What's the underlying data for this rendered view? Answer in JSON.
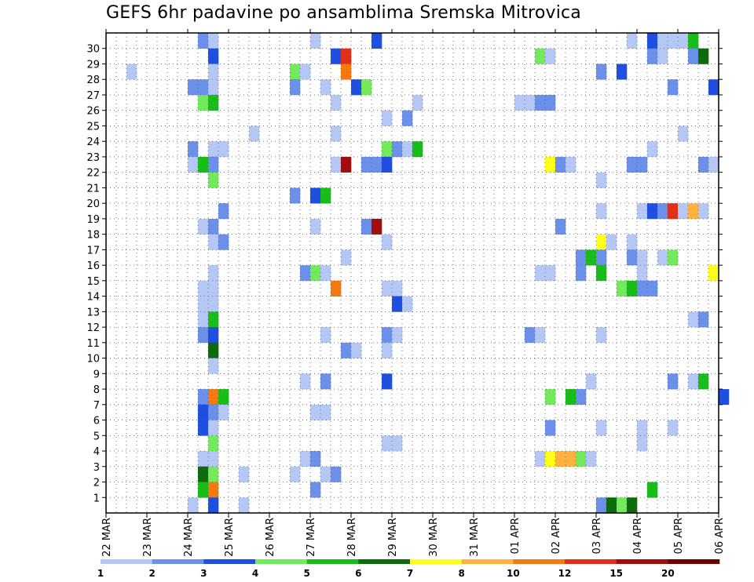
{
  "chart_data": {
    "type": "heatmap",
    "title": "GEFS 6hr padavine po ansamblima Sremska Mitrovica",
    "x_tick_labels": [
      "22 MAR",
      "23 MAR",
      "24 MAR",
      "25 MAR",
      "26 MAR",
      "27 MAR",
      "28 MAR",
      "29 MAR",
      "30 MAR",
      "31 MAR",
      "01 APR",
      "02 APR",
      "03 APR",
      "04 APR",
      "05 APR",
      "06 APR"
    ],
    "y_tick_labels": [
      1,
      2,
      3,
      4,
      5,
      6,
      7,
      8,
      9,
      10,
      11,
      12,
      13,
      14,
      15,
      16,
      17,
      18,
      19,
      20,
      21,
      22,
      23,
      24,
      25,
      26,
      27,
      28,
      29,
      30
    ],
    "members": 31,
    "steps_per_day": 4,
    "legend_labels": [
      "1",
      "2",
      "3",
      "4",
      "5",
      "6",
      "7",
      "8",
      "10",
      "12",
      "15",
      "20"
    ],
    "colors": [
      "#b4c7f5",
      "#6a90ea",
      "#1f4fe0",
      "#72ea5c",
      "#19bd19",
      "#0d6b0d",
      "#ffff1a",
      "#ffb240",
      "#f47a10",
      "#e0301a",
      "#a00d0d",
      "#6e0000"
    ],
    "grid": "dotted",
    "cells": [
      {
        "member": 30,
        "step": 9,
        "level": 1
      },
      {
        "member": 30,
        "step": 10,
        "level": 0
      },
      {
        "member": 30,
        "step": 20,
        "level": 0
      },
      {
        "member": 30,
        "step": 26,
        "level": 2
      },
      {
        "member": 30,
        "step": 51,
        "level": 0
      },
      {
        "member": 30,
        "step": 53,
        "level": 2
      },
      {
        "member": 30,
        "step": 54,
        "level": 0
      },
      {
        "member": 30,
        "step": 55,
        "level": 0
      },
      {
        "member": 30,
        "step": 56,
        "level": 0
      },
      {
        "member": 30,
        "step": 57,
        "level": 4
      },
      {
        "member": 29,
        "step": 10,
        "level": 2
      },
      {
        "member": 29,
        "step": 22,
        "level": 2
      },
      {
        "member": 29,
        "step": 23,
        "level": 9
      },
      {
        "member": 29,
        "step": 42,
        "level": 3
      },
      {
        "member": 29,
        "step": 43,
        "level": 0
      },
      {
        "member": 29,
        "step": 53,
        "level": 1
      },
      {
        "member": 29,
        "step": 54,
        "level": 0
      },
      {
        "member": 29,
        "step": 57,
        "level": 1
      },
      {
        "member": 29,
        "step": 58,
        "level": 5
      },
      {
        "member": 28,
        "step": 2,
        "level": 0
      },
      {
        "member": 28,
        "step": 10,
        "level": 0
      },
      {
        "member": 28,
        "step": 18,
        "level": 3
      },
      {
        "member": 28,
        "step": 19,
        "level": 0
      },
      {
        "member": 28,
        "step": 23,
        "level": 8
      },
      {
        "member": 28,
        "step": 48,
        "level": 1
      },
      {
        "member": 28,
        "step": 50,
        "level": 2
      },
      {
        "member": 27,
        "step": 8,
        "level": 1
      },
      {
        "member": 27,
        "step": 9,
        "level": 1
      },
      {
        "member": 27,
        "step": 10,
        "level": 0
      },
      {
        "member": 27,
        "step": 18,
        "level": 1
      },
      {
        "member": 27,
        "step": 21,
        "level": 0
      },
      {
        "member": 27,
        "step": 24,
        "level": 2
      },
      {
        "member": 27,
        "step": 25,
        "level": 3
      },
      {
        "member": 27,
        "step": 55,
        "level": 1
      },
      {
        "member": 27,
        "step": 59,
        "level": 2
      },
      {
        "member": 26,
        "step": 9,
        "level": 3
      },
      {
        "member": 26,
        "step": 10,
        "level": 4
      },
      {
        "member": 26,
        "step": 22,
        "level": 0
      },
      {
        "member": 26,
        "step": 30,
        "level": 0
      },
      {
        "member": 26,
        "step": 40,
        "level": 0
      },
      {
        "member": 26,
        "step": 41,
        "level": 0
      },
      {
        "member": 26,
        "step": 42,
        "level": 1
      },
      {
        "member": 26,
        "step": 43,
        "level": 1
      },
      {
        "member": 25,
        "step": 27,
        "level": 0
      },
      {
        "member": 25,
        "step": 29,
        "level": 1
      },
      {
        "member": 24,
        "step": 14,
        "level": 0
      },
      {
        "member": 24,
        "step": 22,
        "level": 0
      },
      {
        "member": 24,
        "step": 56,
        "level": 0
      },
      {
        "member": 23,
        "step": 8,
        "level": 1
      },
      {
        "member": 23,
        "step": 10,
        "level": 0
      },
      {
        "member": 23,
        "step": 11,
        "level": 0
      },
      {
        "member": 23,
        "step": 27,
        "level": 3
      },
      {
        "member": 23,
        "step": 28,
        "level": 1
      },
      {
        "member": 23,
        "step": 29,
        "level": 0
      },
      {
        "member": 23,
        "step": 30,
        "level": 4
      },
      {
        "member": 23,
        "step": 53,
        "level": 0
      },
      {
        "member": 22,
        "step": 8,
        "level": 0
      },
      {
        "member": 22,
        "step": 9,
        "level": 4
      },
      {
        "member": 22,
        "step": 10,
        "level": 1
      },
      {
        "member": 22,
        "step": 22,
        "level": 0
      },
      {
        "member": 22,
        "step": 23,
        "level": 10
      },
      {
        "member": 22,
        "step": 25,
        "level": 1
      },
      {
        "member": 22,
        "step": 26,
        "level": 1
      },
      {
        "member": 22,
        "step": 27,
        "level": 2
      },
      {
        "member": 22,
        "step": 43,
        "level": 6
      },
      {
        "member": 22,
        "step": 44,
        "level": 1
      },
      {
        "member": 22,
        "step": 45,
        "level": 0
      },
      {
        "member": 22,
        "step": 51,
        "level": 1
      },
      {
        "member": 22,
        "step": 52,
        "level": 1
      },
      {
        "member": 22,
        "step": 58,
        "level": 1
      },
      {
        "member": 22,
        "step": 59,
        "level": 0
      },
      {
        "member": 21,
        "step": 10,
        "level": 3
      },
      {
        "member": 21,
        "step": 48,
        "level": 0
      },
      {
        "member": 20,
        "step": 18,
        "level": 1
      },
      {
        "member": 20,
        "step": 20,
        "level": 2
      },
      {
        "member": 20,
        "step": 21,
        "level": 4
      },
      {
        "member": 19,
        "step": 11,
        "level": 1
      },
      {
        "member": 19,
        "step": 48,
        "level": 0
      },
      {
        "member": 19,
        "step": 52,
        "level": 0
      },
      {
        "member": 19,
        "step": 53,
        "level": 2
      },
      {
        "member": 19,
        "step": 54,
        "level": 1
      },
      {
        "member": 19,
        "step": 55,
        "level": 9
      },
      {
        "member": 19,
        "step": 56,
        "level": 0
      },
      {
        "member": 19,
        "step": 57,
        "level": 7
      },
      {
        "member": 19,
        "step": 58,
        "level": 0
      },
      {
        "member": 18,
        "step": 9,
        "level": 0
      },
      {
        "member": 18,
        "step": 10,
        "level": 1
      },
      {
        "member": 18,
        "step": 20,
        "level": 0
      },
      {
        "member": 18,
        "step": 25,
        "level": 1
      },
      {
        "member": 18,
        "step": 26,
        "level": 10
      },
      {
        "member": 18,
        "step": 44,
        "level": 1
      },
      {
        "member": 17,
        "step": 10,
        "level": 0
      },
      {
        "member": 17,
        "step": 11,
        "level": 1
      },
      {
        "member": 17,
        "step": 27,
        "level": 0
      },
      {
        "member": 17,
        "step": 48,
        "level": 6
      },
      {
        "member": 17,
        "step": 49,
        "level": 0
      },
      {
        "member": 17,
        "step": 51,
        "level": 0
      },
      {
        "member": 16,
        "step": 23,
        "level": 0
      },
      {
        "member": 16,
        "step": 46,
        "level": 1
      },
      {
        "member": 16,
        "step": 47,
        "level": 4
      },
      {
        "member": 16,
        "step": 48,
        "level": 1
      },
      {
        "member": 16,
        "step": 51,
        "level": 1
      },
      {
        "member": 16,
        "step": 52,
        "level": 0
      },
      {
        "member": 16,
        "step": 54,
        "level": 0
      },
      {
        "member": 16,
        "step": 55,
        "level": 3
      },
      {
        "member": 15,
        "step": 10,
        "level": 0
      },
      {
        "member": 15,
        "step": 19,
        "level": 1
      },
      {
        "member": 15,
        "step": 20,
        "level": 3
      },
      {
        "member": 15,
        "step": 21,
        "level": 0
      },
      {
        "member": 15,
        "step": 42,
        "level": 0
      },
      {
        "member": 15,
        "step": 43,
        "level": 0
      },
      {
        "member": 15,
        "step": 46,
        "level": 1
      },
      {
        "member": 15,
        "step": 48,
        "level": 4
      },
      {
        "member": 15,
        "step": 52,
        "level": 0
      },
      {
        "member": 15,
        "step": 59,
        "level": 6
      },
      {
        "member": 14,
        "step": 9,
        "level": 0
      },
      {
        "member": 14,
        "step": 10,
        "level": 0
      },
      {
        "member": 14,
        "step": 22,
        "level": 8
      },
      {
        "member": 14,
        "step": 27,
        "level": 0
      },
      {
        "member": 14,
        "step": 28,
        "level": 0
      },
      {
        "member": 14,
        "step": 50,
        "level": 3
      },
      {
        "member": 14,
        "step": 51,
        "level": 4
      },
      {
        "member": 14,
        "step": 52,
        "level": 1
      },
      {
        "member": 14,
        "step": 53,
        "level": 1
      },
      {
        "member": 13,
        "step": 9,
        "level": 0
      },
      {
        "member": 13,
        "step": 10,
        "level": 0
      },
      {
        "member": 13,
        "step": 28,
        "level": 2
      },
      {
        "member": 13,
        "step": 29,
        "level": 0
      },
      {
        "member": 12,
        "step": 9,
        "level": 0
      },
      {
        "member": 12,
        "step": 10,
        "level": 4
      },
      {
        "member": 12,
        "step": 57,
        "level": 0
      },
      {
        "member": 12,
        "step": 58,
        "level": 1
      },
      {
        "member": 11,
        "step": 9,
        "level": 1
      },
      {
        "member": 11,
        "step": 10,
        "level": 2
      },
      {
        "member": 11,
        "step": 21,
        "level": 0
      },
      {
        "member": 11,
        "step": 27,
        "level": 1
      },
      {
        "member": 11,
        "step": 28,
        "level": 0
      },
      {
        "member": 11,
        "step": 41,
        "level": 1
      },
      {
        "member": 11,
        "step": 42,
        "level": 0
      },
      {
        "member": 11,
        "step": 48,
        "level": 0
      },
      {
        "member": 10,
        "step": 10,
        "level": 5
      },
      {
        "member": 10,
        "step": 23,
        "level": 1
      },
      {
        "member": 10,
        "step": 24,
        "level": 0
      },
      {
        "member": 10,
        "step": 27,
        "level": 0
      },
      {
        "member": 9,
        "step": 10,
        "level": 0
      },
      {
        "member": 8,
        "step": 19,
        "level": 0
      },
      {
        "member": 8,
        "step": 21,
        "level": 1
      },
      {
        "member": 8,
        "step": 27,
        "level": 2
      },
      {
        "member": 8,
        "step": 47,
        "level": 0
      },
      {
        "member": 8,
        "step": 55,
        "level": 1
      },
      {
        "member": 8,
        "step": 57,
        "level": 0
      },
      {
        "member": 8,
        "step": 58,
        "level": 4
      },
      {
        "member": 7,
        "step": 9,
        "level": 1
      },
      {
        "member": 7,
        "step": 10,
        "level": 8
      },
      {
        "member": 7,
        "step": 11,
        "level": 4
      },
      {
        "member": 7,
        "step": 43,
        "level": 3
      },
      {
        "member": 7,
        "step": 45,
        "level": 4
      },
      {
        "member": 7,
        "step": 46,
        "level": 1
      },
      {
        "member": 7,
        "step": 60,
        "level": 2
      },
      {
        "member": 6,
        "step": 9,
        "level": 2
      },
      {
        "member": 6,
        "step": 10,
        "level": 1
      },
      {
        "member": 6,
        "step": 11,
        "level": 0
      },
      {
        "member": 6,
        "step": 20,
        "level": 0
      },
      {
        "member": 6,
        "step": 21,
        "level": 0
      },
      {
        "member": 5,
        "step": 9,
        "level": 2
      },
      {
        "member": 5,
        "step": 10,
        "level": 0
      },
      {
        "member": 5,
        "step": 43,
        "level": 1
      },
      {
        "member": 5,
        "step": 48,
        "level": 0
      },
      {
        "member": 5,
        "step": 52,
        "level": 0
      },
      {
        "member": 5,
        "step": 55,
        "level": 0
      },
      {
        "member": 4,
        "step": 10,
        "level": 3
      },
      {
        "member": 4,
        "step": 27,
        "level": 0
      },
      {
        "member": 4,
        "step": 28,
        "level": 0
      },
      {
        "member": 4,
        "step": 52,
        "level": 0
      },
      {
        "member": 3,
        "step": 9,
        "level": 0
      },
      {
        "member": 3,
        "step": 10,
        "level": 0
      },
      {
        "member": 3,
        "step": 19,
        "level": 0
      },
      {
        "member": 3,
        "step": 20,
        "level": 1
      },
      {
        "member": 3,
        "step": 42,
        "level": 0
      },
      {
        "member": 3,
        "step": 43,
        "level": 6
      },
      {
        "member": 3,
        "step": 44,
        "level": 7
      },
      {
        "member": 3,
        "step": 45,
        "level": 7
      },
      {
        "member": 3,
        "step": 46,
        "level": 3
      },
      {
        "member": 3,
        "step": 47,
        "level": 0
      },
      {
        "member": 2,
        "step": 9,
        "level": 5
      },
      {
        "member": 2,
        "step": 10,
        "level": 3
      },
      {
        "member": 2,
        "step": 13,
        "level": 0
      },
      {
        "member": 2,
        "step": 18,
        "level": 0
      },
      {
        "member": 2,
        "step": 21,
        "level": 0
      },
      {
        "member": 2,
        "step": 22,
        "level": 1
      },
      {
        "member": 1,
        "step": 9,
        "level": 4
      },
      {
        "member": 1,
        "step": 10,
        "level": 8
      },
      {
        "member": 1,
        "step": 20,
        "level": 1
      },
      {
        "member": 1,
        "step": 53,
        "level": 4
      },
      {
        "member": 0,
        "step": 8,
        "level": 0
      },
      {
        "member": 0,
        "step": 10,
        "level": 2
      },
      {
        "member": 0,
        "step": 13,
        "level": 0
      },
      {
        "member": 0,
        "step": 48,
        "level": 1
      },
      {
        "member": 0,
        "step": 49,
        "level": 5
      },
      {
        "member": 0,
        "step": 50,
        "level": 3
      },
      {
        "member": 0,
        "step": 51,
        "level": 5
      }
    ]
  }
}
